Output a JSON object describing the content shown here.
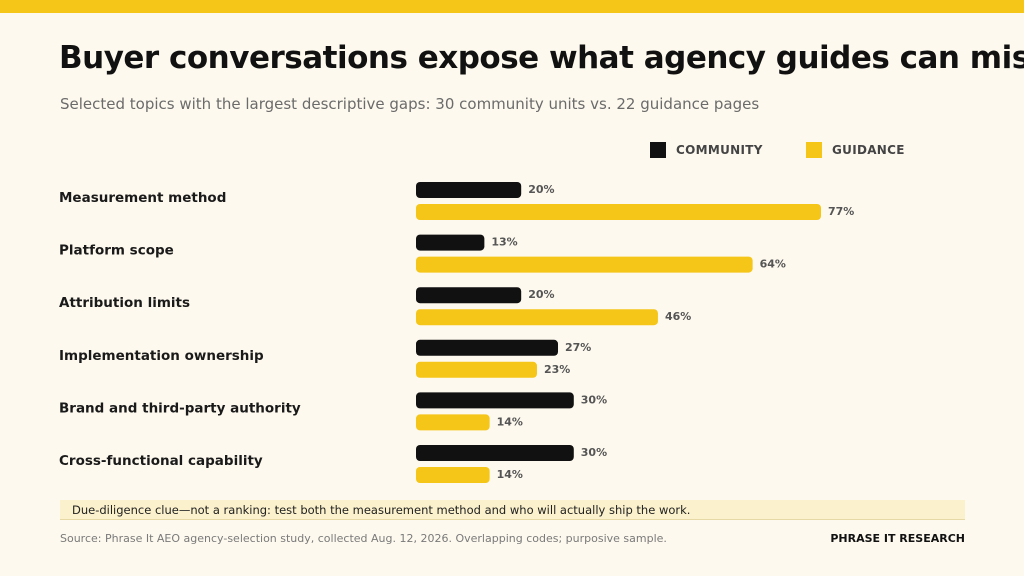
{
  "title": "Buyer conversations expose what agency guides can miss",
  "subtitle": "Selected topics with the largest descriptive gaps: 30 community units vs. 22 guidance pages",
  "note": "Due-diligence clue—not a ranking: test both the measurement method and who will actually ship the work.",
  "source": "Source: Phrase It AEO agency-selection study, collected Aug. 12, 2026. Overlapping codes; purposive sample.",
  "brand": "PHRASE IT RESEARCH",
  "colors": {
    "community": "#111111",
    "guidance": "#f5c518",
    "accent_bar": "#f5c518"
  },
  "chart_data": {
    "type": "bar",
    "orientation": "horizontal",
    "categories": [
      "Measurement method",
      "Platform scope",
      "Attribution limits",
      "Implementation ownership",
      "Brand and third-party authority",
      "Cross-functional capability"
    ],
    "series": [
      {
        "name": "COMMUNITY",
        "color": "#111111",
        "values": [
          20,
          13,
          20,
          27,
          30,
          30
        ],
        "labels": [
          "20%",
          "13%",
          "20%",
          "27%",
          "30%",
          "30%"
        ]
      },
      {
        "name": "GUIDANCE",
        "color": "#f5c518",
        "values": [
          77,
          64,
          46,
          23,
          14,
          14
        ],
        "labels": [
          "77%",
          "64%",
          "46%",
          "23%",
          "14%",
          "14%"
        ]
      }
    ],
    "unit": "%",
    "xlim": [
      0,
      77
    ],
    "legend_position": "top-right",
    "grid": false
  }
}
